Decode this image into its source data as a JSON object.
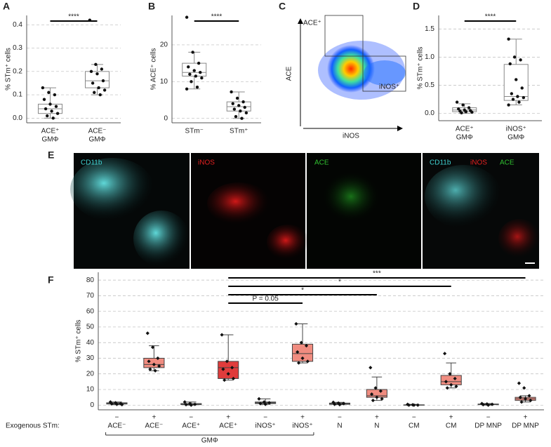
{
  "chart_data": [
    {
      "type": "box",
      "panel": "A",
      "ylabel": "% STm⁺ cells",
      "categories": [
        [
          "ACE⁺",
          "GMΦ"
        ],
        [
          "ACE⁻",
          "GMΦ"
        ]
      ],
      "ylim": [
        -0.02,
        0.44
      ],
      "yticks": [
        {
          "value": 0,
          "label": "0.0"
        },
        {
          "value": 0.1,
          "label": "0.1"
        },
        {
          "value": 0.2,
          "label": "0.2"
        },
        {
          "value": 0.3,
          "label": "0.3"
        },
        {
          "value": 0.4,
          "label": "0.4"
        }
      ],
      "grid": true,
      "color": "#ffffff",
      "boxes": [
        {
          "whislo": 0.0,
          "q1": 0.02,
          "med": 0.04,
          "q3": 0.06,
          "whishi": 0.13,
          "points": [
            0.13,
            0.11,
            0.1,
            0.08,
            0.06,
            0.05,
            0.04,
            0.03,
            0.02,
            0.01,
            0.0
          ]
        },
        {
          "whislo": 0.1,
          "q1": 0.13,
          "med": 0.16,
          "q3": 0.2,
          "whishi": 0.23,
          "points": [
            0.42,
            0.23,
            0.21,
            0.2,
            0.19,
            0.16,
            0.15,
            0.13,
            0.12,
            0.11,
            0.1
          ]
        }
      ],
      "significance": [
        {
          "from": 0,
          "to": 1,
          "label": "****"
        }
      ]
    },
    {
      "type": "box",
      "panel": "B",
      "ylabel": "% ACE⁺ cells",
      "categories": [
        [
          "STm⁻"
        ],
        [
          "STm⁺"
        ]
      ],
      "ylim": [
        -1.2,
        28
      ],
      "yticks": [
        0,
        10,
        20
      ],
      "grid": true,
      "color": "#ffffff",
      "boxes": [
        {
          "whislo": 8,
          "q1": 11.5,
          "med": 12.5,
          "q3": 15,
          "whishi": 18,
          "points": [
            27.5,
            18,
            15,
            14,
            13,
            12.5,
            12,
            11.5,
            11,
            10,
            8.5,
            8
          ]
        },
        {
          "whislo": 0,
          "q1": 2,
          "med": 3.2,
          "q3": 4.5,
          "whishi": 7.2,
          "points": [
            7.2,
            5.5,
            4.5,
            4,
            3.5,
            3,
            2.5,
            2,
            1.5,
            0.5,
            0
          ]
        }
      ],
      "significance": [
        {
          "from": 0,
          "to": 1,
          "label": "****"
        }
      ]
    },
    {
      "type": "box",
      "panel": "D",
      "ylabel": "% STm⁺ cells",
      "categories": [
        [
          "ACE⁺",
          "GMΦ"
        ],
        [
          "iNOS⁺",
          "GMΦ"
        ]
      ],
      "ylim": [
        -0.13,
        1.74
      ],
      "yticks": [
        {
          "value": 0,
          "label": "0.0"
        },
        {
          "value": 0.5,
          "label": "0.5"
        },
        {
          "value": 1,
          "label": "1.0"
        },
        {
          "value": 1.5,
          "label": "1.5"
        }
      ],
      "grid": true,
      "color": "#ffffff",
      "boxes": [
        {
          "whislo": 0,
          "q1": 0.03,
          "med": 0.06,
          "q3": 0.1,
          "whishi": 0.17,
          "points": [
            0.2,
            0.15,
            0.1,
            0.08,
            0.06,
            0.05,
            0.04,
            0.03,
            0.02,
            0.01
          ]
        },
        {
          "whislo": 0.15,
          "q1": 0.23,
          "med": 0.3,
          "q3": 0.87,
          "whishi": 1.32,
          "points": [
            1.32,
            1.0,
            0.95,
            0.88,
            0.6,
            0.45,
            0.35,
            0.3,
            0.28,
            0.25,
            0.2,
            0.15
          ]
        }
      ],
      "significance": [
        {
          "from": 0,
          "to": 1,
          "label": "****"
        }
      ]
    },
    {
      "type": "box",
      "panel": "F",
      "ylabel": "% STm⁺ cells",
      "row_label": "Exogenous STm:",
      "group_label": "GMΦ",
      "exogenous": [
        "−",
        "+",
        "−",
        "+",
        "−",
        "+",
        "−",
        "+",
        "−",
        "+",
        "−",
        "+"
      ],
      "categories": [
        "ACE⁻",
        "ACE⁻",
        "ACE⁺",
        "ACE⁺",
        "iNOS⁺",
        "iNOS⁺",
        "N",
        "N",
        "CM",
        "CM",
        "DP MNP",
        "DP MNP"
      ],
      "ylim": [
        -3,
        85
      ],
      "yticks": [
        0,
        10,
        20,
        30,
        40,
        50,
        60,
        70,
        80
      ],
      "grid": true,
      "colors": [
        "#888888",
        "#f08c80",
        "#888888",
        "#e03c3c",
        "#888888",
        "#f08c80",
        "#888888",
        "#f08c80",
        "#888888",
        "#f08c80",
        "#888888",
        "#f08c80"
      ],
      "boxes": [
        {
          "whislo": 0.3,
          "q1": 0.7,
          "med": 1,
          "q3": 1.5,
          "whishi": 2,
          "points": [
            2,
            1.5,
            1,
            0.8,
            0.5,
            0.3
          ]
        },
        {
          "whislo": 22,
          "q1": 24,
          "med": 26,
          "q3": 30,
          "whishi": 38,
          "points": [
            46,
            37,
            30,
            28,
            26,
            25,
            23,
            22
          ]
        },
        {
          "whislo": 0,
          "q1": 0.3,
          "med": 0.5,
          "q3": 1,
          "whishi": 2,
          "points": [
            2,
            1,
            0.5,
            0.3,
            0
          ]
        },
        {
          "whislo": 16,
          "q1": 17,
          "med": 24,
          "q3": 28,
          "whishi": 45,
          "points": [
            45,
            28,
            24,
            23,
            20,
            17,
            16
          ]
        },
        {
          "whislo": 0.5,
          "q1": 1,
          "med": 1.5,
          "q3": 2,
          "whishi": 4,
          "points": [
            4,
            2,
            1.5,
            1,
            0.5
          ]
        },
        {
          "whislo": 27,
          "q1": 28,
          "med": 33,
          "q3": 39,
          "whishi": 52,
          "points": [
            52,
            40,
            38,
            34,
            30,
            28,
            27
          ]
        },
        {
          "whislo": 0.3,
          "q1": 0.5,
          "med": 1,
          "q3": 1.3,
          "whishi": 1.8,
          "points": [
            1.8,
            1.3,
            1,
            0.5,
            0.3
          ]
        },
        {
          "whislo": 3,
          "q1": 5,
          "med": 6,
          "q3": 10,
          "whishi": 18,
          "points": [
            24,
            11,
            9,
            7,
            5,
            4,
            3
          ]
        },
        {
          "whislo": 0,
          "q1": 0,
          "med": 0,
          "q3": 0.2,
          "whishi": 0.5,
          "points": [
            0.5,
            0.2,
            0,
            0,
            0
          ]
        },
        {
          "whislo": 11,
          "q1": 13,
          "med": 15,
          "q3": 19,
          "whishi": 27,
          "points": [
            33,
            20,
            17,
            15,
            13,
            12,
            11
          ]
        },
        {
          "whislo": 0,
          "q1": 0.3,
          "med": 0.5,
          "q3": 0.7,
          "whishi": 1,
          "points": [
            1,
            0.7,
            0.5,
            0.3,
            0
          ]
        },
        {
          "whislo": 2,
          "q1": 3,
          "med": 4,
          "q3": 5,
          "whishi": 6,
          "points": [
            14,
            11,
            6,
            5,
            4,
            3,
            2
          ]
        }
      ],
      "significance": [
        {
          "from": 3,
          "to": 5,
          "label": "P = 0.05"
        },
        {
          "from": 3,
          "to": 7,
          "label": "*"
        },
        {
          "from": 3,
          "to": 9,
          "label": "*"
        },
        {
          "from": 3,
          "to": 11,
          "label": "***"
        }
      ]
    }
  ],
  "flow": {
    "panel": "C",
    "ylabel": "ACE",
    "xlabel": "iNOS",
    "gates": [
      "ACE⁺",
      "iNOS⁺"
    ]
  },
  "images": {
    "panel": "E",
    "labels": [
      "CD11b",
      "iNOS",
      "ACE"
    ]
  }
}
